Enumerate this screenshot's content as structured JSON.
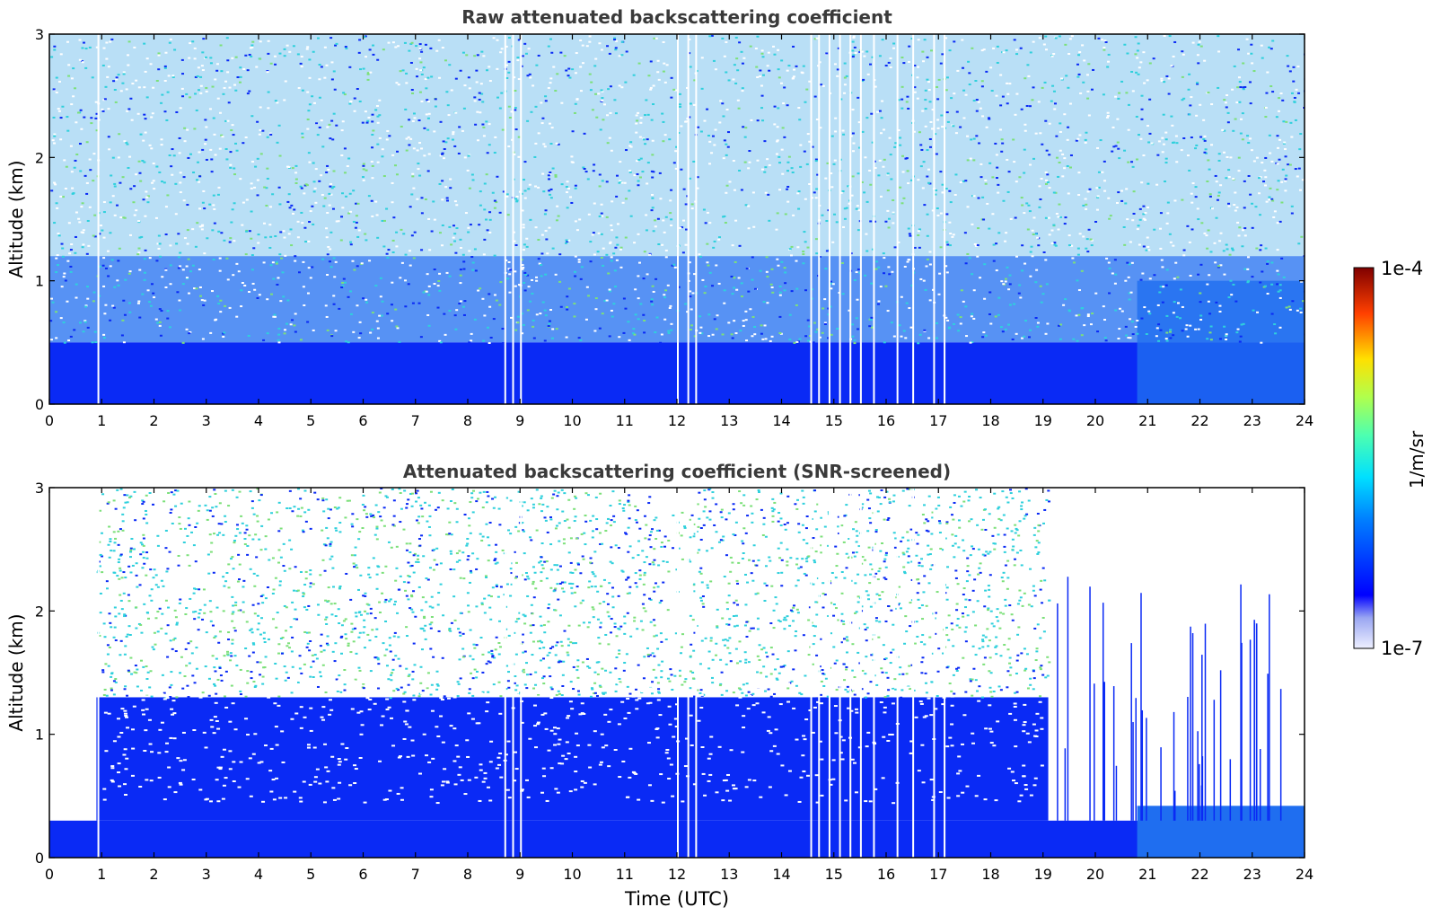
{
  "chart_data": [
    {
      "type": "heatmap",
      "title": "Raw attenuated backscattering coefficient",
      "xlabel": "",
      "ylabel": "Altitude (km)",
      "xlim": [
        0,
        24
      ],
      "ylim": [
        0,
        3
      ],
      "xticks": [
        "0",
        "1",
        "2",
        "3",
        "4",
        "5",
        "6",
        "7",
        "8",
        "9",
        "10",
        "11",
        "12",
        "13",
        "14",
        "15",
        "16",
        "17",
        "18",
        "19",
        "20",
        "21",
        "22",
        "23",
        "24"
      ],
      "yticks": [
        "0",
        "1",
        "2",
        "3"
      ],
      "grid": false
    },
    {
      "type": "heatmap",
      "title": "Attenuated backscattering coefficient (SNR-screened)",
      "xlabel": "Time (UTC)",
      "ylabel": "Altitude (km)",
      "xlim": [
        0,
        24
      ],
      "ylim": [
        0,
        3
      ],
      "xticks": [
        "0",
        "1",
        "2",
        "3",
        "4",
        "5",
        "6",
        "7",
        "8",
        "9",
        "10",
        "11",
        "12",
        "13",
        "14",
        "15",
        "16",
        "17",
        "18",
        "19",
        "20",
        "21",
        "22",
        "23",
        "24"
      ],
      "yticks": [
        "0",
        "1",
        "2",
        "3"
      ],
      "grid": false
    }
  ],
  "colorbar": {
    "label": "1/m/sr",
    "max_label": "1e-4",
    "min_label": "1e-7",
    "scale": "log",
    "colormap": "jet"
  },
  "colors": {
    "background": "#ffffff",
    "dense_blue": "#0a2af5",
    "mid_blue": "#1f6ef0",
    "cyan": "#2fd0dc",
    "green": "#7ce07a",
    "title_text": "#3a3a3a"
  }
}
